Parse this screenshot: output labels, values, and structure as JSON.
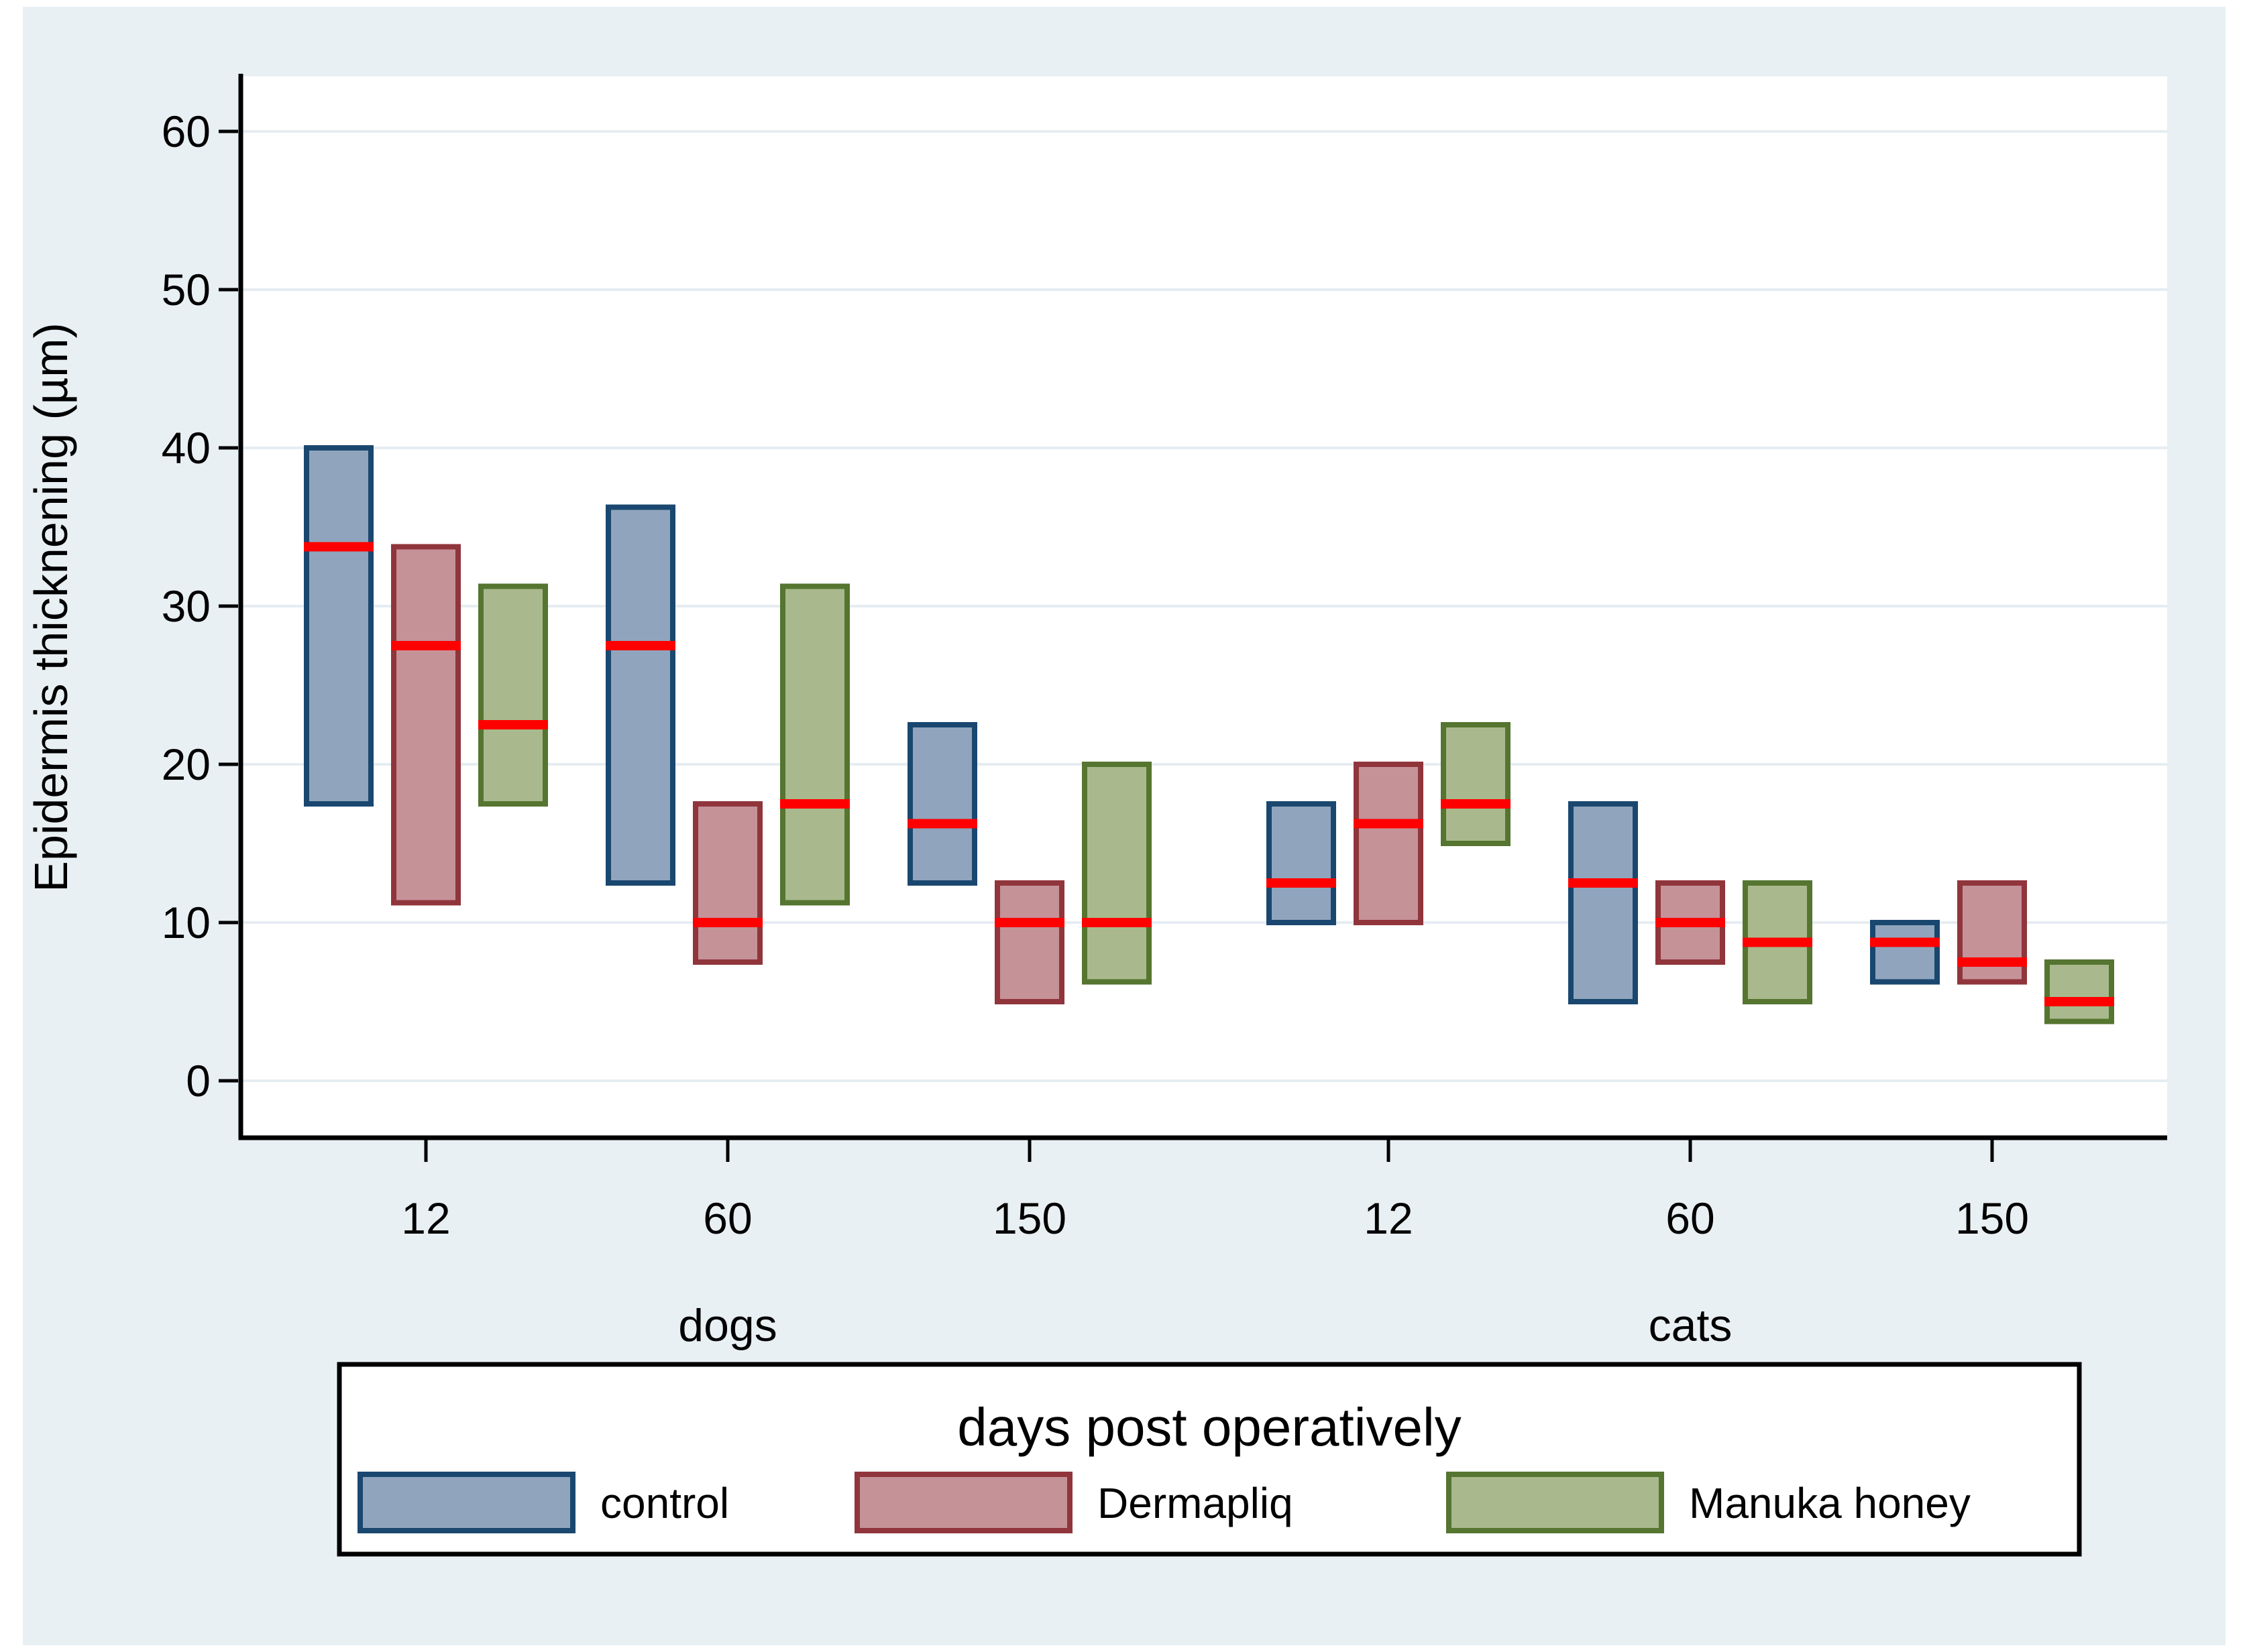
{
  "figure": {
    "background_color": "#E9F0F4",
    "plot_background_color": "#FFFFFF",
    "gridline_color": "#E6EDF2",
    "axis_color": "#000000",
    "tick_label_color": "#000000",
    "legend_box_fill": "#FFFFFF",
    "legend_border_color": "#000000",
    "legend_title_color": "#1F3C64"
  },
  "chart_data": {
    "type": "bar",
    "subtype": "vertical-range-bars-with-median-line",
    "title": "",
    "ylabel": "Epidermis thicknening (µm)",
    "yticks": [
      0,
      10,
      20,
      30,
      40,
      50,
      60
    ],
    "ylim": [
      -3.6,
      63.5
    ],
    "grid": "horizontal",
    "legend_position": "bottom",
    "legend_title": "days post operatively",
    "xlabel_groups": [
      "dogs",
      "cats"
    ],
    "categories": [
      "12",
      "60",
      "150"
    ],
    "median_color": "#FF0000",
    "series": [
      {
        "name": "control",
        "fill": "#90A5BD",
        "border": "#1A476F",
        "values": {
          "dogs": {
            "12": {
              "low": 17.5,
              "high": 40,
              "median": 33.75
            },
            "60": {
              "low": 12.5,
              "high": 36.25,
              "median": 27.5
            },
            "150": {
              "low": 12.5,
              "high": 22.5,
              "median": 16.25
            }
          },
          "cats": {
            "12": {
              "low": 10,
              "high": 17.5,
              "median": 12.5
            },
            "60": {
              "low": 5,
              "high": 17.5,
              "median": 12.5
            },
            "150": {
              "low": 6.25,
              "high": 10,
              "median": 8.75
            }
          }
        }
      },
      {
        "name": "Dermapliq",
        "fill": "#C59298",
        "border": "#90353B",
        "values": {
          "dogs": {
            "12": {
              "low": 11.25,
              "high": 33.75,
              "median": 27.5
            },
            "60": {
              "low": 7.5,
              "high": 17.5,
              "median": 10
            },
            "150": {
              "low": 5,
              "high": 12.5,
              "median": 10
            }
          },
          "cats": {
            "12": {
              "low": 10,
              "high": 20,
              "median": 16.25
            },
            "60": {
              "low": 7.5,
              "high": 12.5,
              "median": 10
            },
            "150": {
              "low": 6.25,
              "high": 12.5,
              "median": 7.5
            }
          }
        }
      },
      {
        "name": "Manuka honey",
        "fill": "#A9B98D",
        "border": "#557530",
        "values": {
          "dogs": {
            "12": {
              "low": 17.5,
              "high": 31.25,
              "median": 22.5
            },
            "60": {
              "low": 11.25,
              "high": 31.25,
              "median": 17.5
            },
            "150": {
              "low": 6.25,
              "high": 20,
              "median": 10
            }
          },
          "cats": {
            "12": {
              "low": 15,
              "high": 22.5,
              "median": 17.5
            },
            "60": {
              "low": 5,
              "high": 12.5,
              "median": 8.75
            },
            "150": {
              "low": 3.75,
              "high": 7.5,
              "median": 5
            }
          }
        }
      }
    ]
  }
}
